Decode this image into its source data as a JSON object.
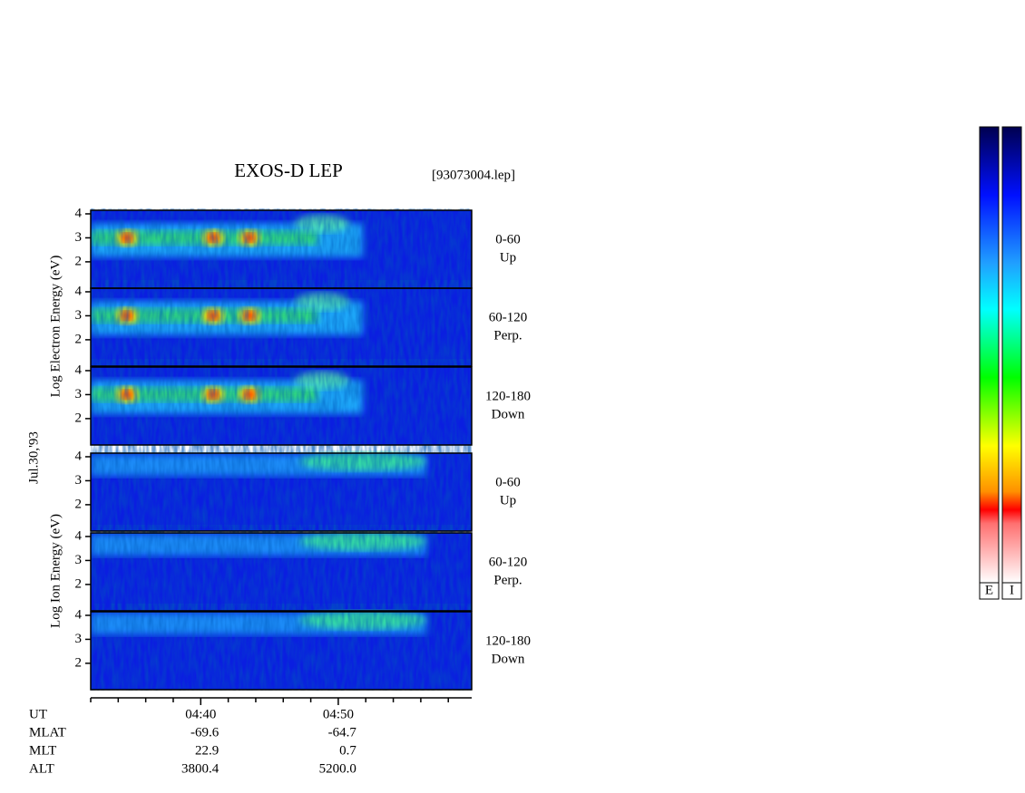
{
  "chart_data": {
    "type": "spectrogram",
    "title": "EXOS-D LEP",
    "file": "[93073004.lep]",
    "date": "Jul.30,'93",
    "electron_axis_label": "Log   Electron   Energy (eV)",
    "ion_axis_label": "Log   Ion   Energy (eV)",
    "ylim": [
      0.9,
      4.15
    ],
    "yticks": [
      2,
      3,
      4
    ],
    "panels": [
      {
        "angle": "0-60",
        "direction": "Up"
      },
      {
        "angle": "60-120",
        "direction": "Perp."
      },
      {
        "angle": "120-180",
        "direction": "Down"
      },
      {
        "angle": "0-60",
        "direction": "Up"
      },
      {
        "angle": "60-120",
        "direction": "Perp."
      },
      {
        "angle": "120-180",
        "direction": "Down"
      }
    ],
    "xlim": [
      32,
      59.7
    ],
    "xticks": [
      {
        "value": 40,
        "label": "04:40"
      },
      {
        "value": 50,
        "label": "04:50"
      }
    ],
    "xminorticks": [
      32,
      34,
      36,
      38,
      42,
      44,
      46,
      48,
      52,
      54,
      56,
      58
    ],
    "ephemeris": [
      {
        "name": "UT",
        "values": []
      },
      {
        "name": "MLAT",
        "values": [
          "-69.6",
          "-64.7"
        ]
      },
      {
        "name": "MLT",
        "values": [
          "22.9",
          "0.7"
        ]
      },
      {
        "name": "ALT",
        "values": [
          "3800.4",
          "5200.0"
        ]
      }
    ],
    "colorbars": [
      "E",
      "I"
    ]
  }
}
